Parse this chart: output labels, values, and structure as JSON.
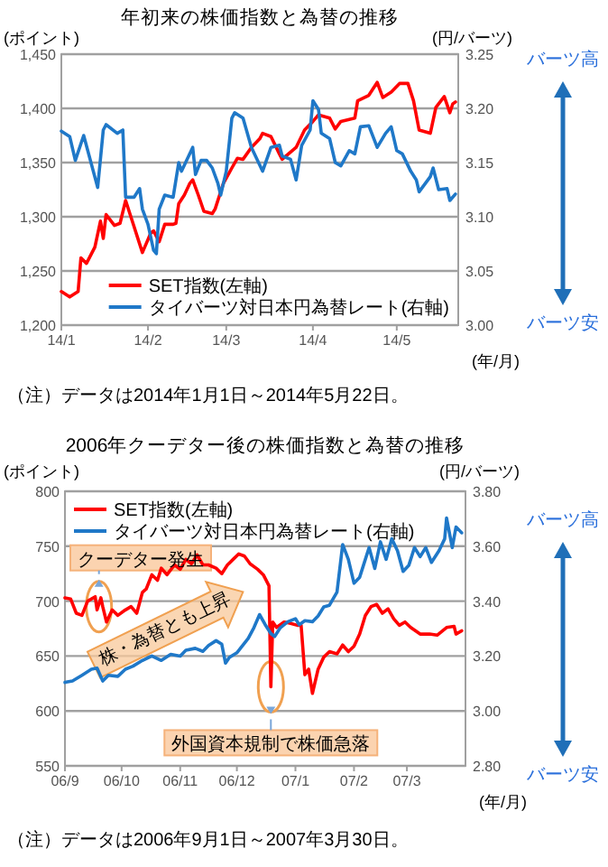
{
  "chart_data": [
    {
      "type": "line",
      "title": "年初来の株価指数と為替の推移",
      "ylabel": "(ポイント)",
      "y2label": "(円/バーツ)",
      "xlabel": "(年/月)",
      "xlim": [
        "2014-01-01",
        "2014-05-23"
      ],
      "xticks": [
        {
          "value": "2014-01-01",
          "label": "14/1"
        },
        {
          "value": "2014-02-01",
          "label": "14/2"
        },
        {
          "value": "2014-03-01",
          "label": "14/3"
        },
        {
          "value": "2014-04-01",
          "label": "14/4"
        },
        {
          "value": "2014-05-01",
          "label": "14/5"
        }
      ],
      "ylim": [
        1200,
        1450
      ],
      "yticks": [
        {
          "value": 1200,
          "label": "1,200"
        },
        {
          "value": 1250,
          "label": "1,250"
        },
        {
          "value": 1300,
          "label": "1,300"
        },
        {
          "value": 1350,
          "label": "1,350"
        },
        {
          "value": 1400,
          "label": "1,400"
        },
        {
          "value": 1450,
          "label": "1,450"
        }
      ],
      "y2lim": [
        3.0,
        3.25
      ],
      "y2ticks": [
        {
          "value": 3.0,
          "label": "3.00"
        },
        {
          "value": 3.05,
          "label": "3.05"
        },
        {
          "value": 3.1,
          "label": "3.10"
        },
        {
          "value": 3.15,
          "label": "3.15"
        },
        {
          "value": 3.2,
          "label": "3.20"
        },
        {
          "value": 3.25,
          "label": "3.25"
        }
      ],
      "grid": "y",
      "legend": "bottom right",
      "series": [
        {
          "name": "SET指数(左軸)",
          "color": "#ff0000",
          "x": [
            "2014-01-01",
            "2014-01-04",
            "2014-01-07",
            "2014-01-08",
            "2014-01-10",
            "2014-01-13",
            "2014-01-15",
            "2014-01-16",
            "2014-01-17",
            "2014-01-20",
            "2014-01-22",
            "2014-01-24",
            "2014-01-27",
            "2014-01-30",
            "2014-01-31",
            "2014-02-02",
            "2014-02-03",
            "2014-02-05",
            "2014-02-07",
            "2014-02-10",
            "2014-02-11",
            "2014-02-12",
            "2014-02-14",
            "2014-02-16",
            "2014-02-17",
            "2014-02-19",
            "2014-02-21",
            "2014-02-24",
            "2014-02-25",
            "2014-02-28",
            "2014-03-03",
            "2014-03-05",
            "2014-03-07",
            "2014-03-10",
            "2014-03-13",
            "2014-03-14",
            "2014-03-17",
            "2014-03-20",
            "2014-03-21",
            "2014-03-26",
            "2014-03-29",
            "2014-04-01",
            "2014-04-03",
            "2014-04-07",
            "2014-04-09",
            "2014-04-11",
            "2014-04-16",
            "2014-04-17",
            "2014-04-21",
            "2014-04-24",
            "2014-04-26",
            "2014-04-29",
            "2014-05-02",
            "2014-05-05",
            "2014-05-07",
            "2014-05-09",
            "2014-05-13",
            "2014-05-15",
            "2014-05-18",
            "2014-05-20",
            "2014-05-21",
            "2014-05-22"
          ],
          "values": [
            1231,
            1226,
            1231,
            1262,
            1257,
            1272,
            1296,
            1280,
            1302,
            1292,
            1294,
            1315,
            1291,
            1267,
            1273,
            1285,
            1287,
            1277,
            1293,
            1293,
            1294,
            1312,
            1320,
            1331,
            1334,
            1320,
            1305,
            1303,
            1307,
            1331,
            1345,
            1354,
            1353,
            1364,
            1372,
            1377,
            1374,
            1358,
            1353,
            1364,
            1380,
            1388,
            1394,
            1391,
            1381,
            1388,
            1391,
            1407,
            1412,
            1424,
            1410,
            1415,
            1423,
            1423,
            1407,
            1380,
            1377,
            1401,
            1411,
            1396,
            1404,
            1406
          ]
        },
        {
          "name": "タイバーツ対日本円為替レート(右軸)",
          "color": "#1f78c8",
          "axis": "y2",
          "x": [
            "2014-01-01",
            "2014-01-04",
            "2014-01-06",
            "2014-01-09",
            "2014-01-14",
            "2014-01-16",
            "2014-01-17",
            "2014-01-21",
            "2014-01-23",
            "2014-01-24",
            "2014-01-27",
            "2014-01-29",
            "2014-01-30",
            "2014-02-01",
            "2014-02-03",
            "2014-02-04",
            "2014-02-05",
            "2014-02-07",
            "2014-02-10",
            "2014-02-12",
            "2014-02-13",
            "2014-02-17",
            "2014-02-18",
            "2014-02-20",
            "2014-02-22",
            "2014-02-24",
            "2014-02-26",
            "2014-02-27",
            "2014-03-01",
            "2014-03-03",
            "2014-03-04",
            "2014-03-07",
            "2014-03-10",
            "2014-03-14",
            "2014-03-17",
            "2014-03-20",
            "2014-03-21",
            "2014-03-24",
            "2014-03-26",
            "2014-03-28",
            "2014-03-31",
            "2014-04-01",
            "2014-04-03",
            "2014-04-04",
            "2014-04-07",
            "2014-04-09",
            "2014-04-11",
            "2014-04-14",
            "2014-04-16",
            "2014-04-18",
            "2014-04-21",
            "2014-04-24",
            "2014-04-27",
            "2014-04-29",
            "2014-05-01",
            "2014-05-03",
            "2014-05-06",
            "2014-05-08",
            "2014-05-09",
            "2014-05-13",
            "2014-05-14",
            "2014-05-16",
            "2014-05-19",
            "2014-05-20",
            "2014-05-22"
          ],
          "values": [
            3.179,
            3.174,
            3.152,
            3.175,
            3.127,
            3.18,
            3.185,
            3.177,
            3.18,
            3.118,
            3.118,
            3.126,
            3.107,
            3.093,
            3.069,
            3.066,
            3.107,
            3.12,
            3.118,
            3.15,
            3.142,
            3.164,
            3.139,
            3.152,
            3.152,
            3.145,
            3.131,
            3.12,
            3.142,
            3.191,
            3.196,
            3.191,
            3.164,
            3.142,
            3.164,
            3.166,
            3.156,
            3.153,
            3.134,
            3.166,
            3.18,
            3.207,
            3.199,
            3.177,
            3.172,
            3.15,
            3.147,
            3.161,
            3.158,
            3.183,
            3.184,
            3.164,
            3.177,
            3.183,
            3.161,
            3.158,
            3.142,
            3.134,
            3.123,
            3.137,
            3.145,
            3.125,
            3.126,
            3.115,
            3.121
          ]
        }
      ],
      "annotations": [
        "バーツ高",
        "バーツ安",
        "（注）データは2014年1月1日～2014年5月22日。"
      ]
    },
    {
      "type": "line",
      "title": "2006年クーデター後の株価指数と為替の推移",
      "ylabel": "(ポイント)",
      "y2label": "(円/バーツ)",
      "xlabel": "(年/月)",
      "xlim": [
        "2006-09-01",
        "2007-04-01"
      ],
      "xticks": [
        {
          "value": "2006-09-01",
          "label": "06/9"
        },
        {
          "value": "2006-10-01",
          "label": "06/10"
        },
        {
          "value": "2006-11-01",
          "label": "06/11"
        },
        {
          "value": "2006-12-01",
          "label": "06/12"
        },
        {
          "value": "2007-01-01",
          "label": "07/1"
        },
        {
          "value": "2007-02-01",
          "label": "07/2"
        },
        {
          "value": "2007-03-01",
          "label": "07/3"
        }
      ],
      "ylim": [
        550,
        800
      ],
      "yticks": [
        550,
        600,
        650,
        700,
        750,
        800
      ],
      "y2lim": [
        2.8,
        3.8
      ],
      "y2ticks": [
        {
          "value": 2.8,
          "label": "2.80"
        },
        {
          "value": 3.0,
          "label": "3.00"
        },
        {
          "value": 3.2,
          "label": "3.20"
        },
        {
          "value": 3.4,
          "label": "3.40"
        },
        {
          "value": 3.6,
          "label": "3.60"
        },
        {
          "value": 3.8,
          "label": "3.80"
        }
      ],
      "grid": "y",
      "legend": "top left",
      "series": [
        {
          "name": "SET指数(左軸)",
          "color": "#ff0000",
          "x": [
            "2006-09-01",
            "2006-09-04",
            "2006-09-07",
            "2006-09-10",
            "2006-09-13",
            "2006-09-17",
            "2006-09-18",
            "2006-09-20",
            "2006-09-21",
            "2006-09-23",
            "2006-09-26",
            "2006-09-29",
            "2006-10-03",
            "2006-10-06",
            "2006-10-09",
            "2006-10-12",
            "2006-10-14",
            "2006-10-17",
            "2006-10-20",
            "2006-10-22",
            "2006-10-25",
            "2006-10-29",
            "2006-11-01",
            "2006-11-04",
            "2006-11-07",
            "2006-11-10",
            "2006-11-13",
            "2006-11-16",
            "2006-11-20",
            "2006-11-23",
            "2006-11-26",
            "2006-11-29",
            "2006-12-02",
            "2006-12-05",
            "2006-12-08",
            "2006-12-12",
            "2006-12-15",
            "2006-12-18",
            "2006-12-19",
            "2006-12-20",
            "2006-12-22",
            "2006-12-26",
            "2006-12-29",
            "2007-01-02",
            "2007-01-04",
            "2007-01-06",
            "2007-01-08",
            "2007-01-10",
            "2007-01-13",
            "2007-01-16",
            "2007-01-19",
            "2007-01-23",
            "2007-01-26",
            "2007-01-29",
            "2007-02-01",
            "2007-02-04",
            "2007-02-07",
            "2007-02-10",
            "2007-02-13",
            "2007-02-16",
            "2007-02-19",
            "2007-02-22",
            "2007-02-25",
            "2007-02-28",
            "2007-03-03",
            "2007-03-08",
            "2007-03-13",
            "2007-03-17",
            "2007-03-22",
            "2007-03-26",
            "2007-03-27",
            "2007-03-30"
          ],
          "values": [
            703,
            702,
            689,
            687,
            700,
            704,
            692,
            703,
            695,
            681,
            692,
            687,
            692,
            695,
            689,
            708,
            711,
            724,
            719,
            730,
            724,
            733,
            729,
            738,
            734,
            742,
            733,
            733,
            730,
            725,
            733,
            738,
            743,
            741,
            734,
            729,
            724,
            714,
            622,
            681,
            676,
            681,
            680,
            678,
            678,
            633,
            638,
            616,
            638,
            649,
            654,
            652,
            660,
            654,
            659,
            670,
            687,
            695,
            697,
            689,
            693,
            684,
            678,
            681,
            676,
            670,
            670,
            669,
            676,
            677,
            670,
            673
          ]
        },
        {
          "name": "タイバーツ対日本円為替レート(右軸)",
          "color": "#1f78c8",
          "axis": "y2",
          "x": [
            "2006-09-01",
            "2006-09-05",
            "2006-09-10",
            "2006-09-15",
            "2006-09-18",
            "2006-09-21",
            "2006-09-24",
            "2006-09-29",
            "2006-10-03",
            "2006-10-07",
            "2006-10-12",
            "2006-10-17",
            "2006-10-22",
            "2006-10-27",
            "2006-11-01",
            "2006-11-04",
            "2006-11-09",
            "2006-11-13",
            "2006-11-16",
            "2006-11-20",
            "2006-11-23",
            "2006-11-25",
            "2006-11-27",
            "2006-12-01",
            "2006-12-04",
            "2006-12-07",
            "2006-12-10",
            "2006-12-13",
            "2006-12-16",
            "2006-12-19",
            "2006-12-21",
            "2006-12-24",
            "2006-12-28",
            "2007-01-01",
            "2007-01-03",
            "2007-01-06",
            "2007-01-10",
            "2007-01-13",
            "2007-01-16",
            "2007-01-19",
            "2007-01-23",
            "2007-01-26",
            "2007-01-29",
            "2007-02-01",
            "2007-02-04",
            "2007-02-07",
            "2007-02-09",
            "2007-02-12",
            "2007-02-15",
            "2007-02-18",
            "2007-02-21",
            "2007-02-24",
            "2007-02-27",
            "2007-03-02",
            "2007-03-05",
            "2007-03-08",
            "2007-03-11",
            "2007-03-14",
            "2007-03-18",
            "2007-03-21",
            "2007-03-22",
            "2007-03-25",
            "2007-03-27",
            "2007-03-30"
          ],
          "values": [
            3.104,
            3.109,
            3.13,
            3.152,
            3.156,
            3.109,
            3.13,
            3.126,
            3.152,
            3.163,
            3.184,
            3.2,
            3.184,
            3.206,
            3.2,
            3.221,
            3.228,
            3.217,
            3.238,
            3.256,
            3.243,
            3.174,
            3.195,
            3.212,
            3.238,
            3.264,
            3.303,
            3.351,
            3.314,
            3.282,
            3.271,
            3.303,
            3.325,
            3.336,
            3.314,
            3.329,
            3.325,
            3.346,
            3.379,
            3.385,
            3.433,
            3.606,
            3.552,
            3.465,
            3.487,
            3.552,
            3.595,
            3.519,
            3.616,
            3.552,
            3.627,
            3.584,
            3.508,
            3.53,
            3.595,
            3.562,
            3.595,
            3.541,
            3.584,
            3.627,
            3.703,
            3.595,
            3.67,
            3.649
          ]
        }
      ],
      "annotations": [
        {
          "text": "クーデター発生",
          "x": "2006-09-19",
          "y": 695
        },
        "株・為替とも上昇",
        {
          "text": "外国資本規制で株価急落",
          "x": "2006-12-19",
          "y": 622
        },
        "バーツ高",
        "バーツ安",
        "（注）データは2006年9月1日～2007年3月30日。"
      ]
    }
  ]
}
